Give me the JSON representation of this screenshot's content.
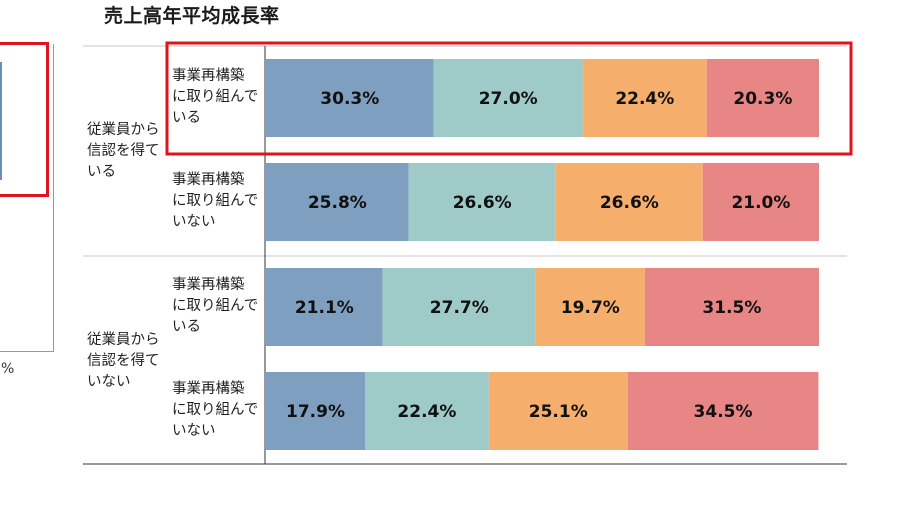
{
  "chart_data": {
    "type": "bar",
    "stacked": true,
    "orientation": "horizontal",
    "title": "売上高年平均成長率",
    "groups": [
      {
        "label": "従業員から\n信認を得て\nいる",
        "rows": [
          {
            "label": "事業再構築\nに取り組んで\nいる",
            "values": [
              30.3,
              27.0,
              22.4,
              20.3
            ],
            "value_labels": [
              "30.3%",
              "27.0%",
              "22.4%",
              "20.3%"
            ],
            "highlighted": true
          },
          {
            "label": "事業再構築\nに取り組んで\nいない",
            "values": [
              25.8,
              26.6,
              26.6,
              21.0
            ],
            "value_labels": [
              "25.8%",
              "26.6%",
              "26.6%",
              "21.0%"
            ],
            "highlighted": false
          }
        ]
      },
      {
        "label": "従業員から\n信認を得て\nいない",
        "rows": [
          {
            "label": "事業再構築\nに取り組んで\nいる",
            "values": [
              21.1,
              27.7,
              19.7,
              31.5
            ],
            "value_labels": [
              "21.1%",
              "27.7%",
              "19.7%",
              "31.5%"
            ],
            "highlighted": false
          },
          {
            "label": "事業再構築\nに取り組んで\nいない",
            "values": [
              17.9,
              22.4,
              25.1,
              34.5
            ],
            "value_labels": [
              "17.9%",
              "22.4%",
              "25.1%",
              "34.5%"
            ],
            "highlighted": false
          }
        ]
      }
    ],
    "segment_colors": [
      "#7f9fc0",
      "#9ecbc7",
      "#f5ae6b",
      "#e88686"
    ],
    "highlight_color": "#e0141e",
    "xlim": [
      0,
      100
    ],
    "legend": "none"
  },
  "left_fragment": {
    "percent_text": "%",
    "title_tail": "、"
  }
}
